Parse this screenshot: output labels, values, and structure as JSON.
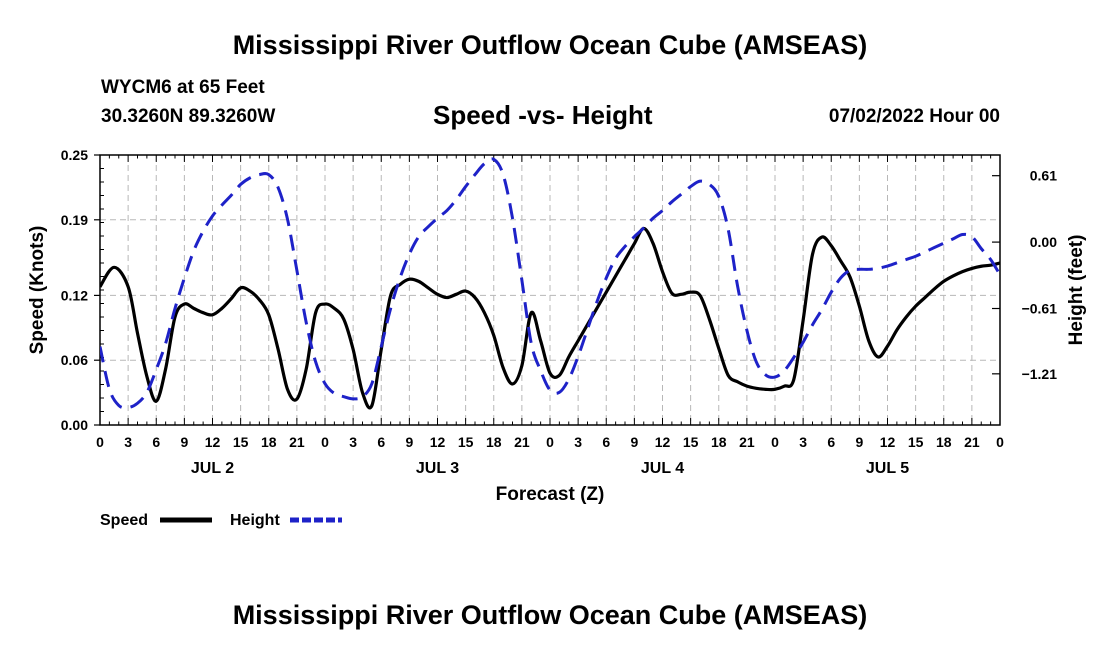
{
  "header": {
    "title": "Mississippi River Outflow Ocean Cube (AMSEAS)",
    "station": "WYCM6 at 65 Feet",
    "coords": "30.3260N  89.3260W",
    "subtitle": "Speed -vs- Height",
    "datetime": "07/02/2022 Hour 00"
  },
  "footer": {
    "title": "Mississippi River Outflow Ocean Cube (AMSEAS)"
  },
  "chart_data": {
    "type": "line",
    "title": "Speed -vs- Height",
    "xlabel": "Forecast (Z)",
    "ylabel": "Speed (Knots)",
    "y2label": "Height (feet)",
    "xlim": [
      0,
      96
    ],
    "ylim": [
      0,
      0.25
    ],
    "y2lim": [
      -1.68,
      0.8
    ],
    "grid": true,
    "x_tick_labels": [
      "0",
      "3",
      "6",
      "9",
      "12",
      "15",
      "18",
      "21",
      "0",
      "3",
      "6",
      "9",
      "12",
      "15",
      "18",
      "21",
      "0",
      "3",
      "6",
      "9",
      "12",
      "15",
      "18",
      "21",
      "0",
      "3",
      "6",
      "9",
      "12",
      "15",
      "18",
      "21",
      "0"
    ],
    "y_ticks": [
      0.0,
      0.06,
      0.12,
      0.19,
      0.25
    ],
    "y_tick_labels": [
      "0.00",
      "0.06",
      "0.12",
      "0.19",
      "0.25"
    ],
    "y2_ticks": [
      0.61,
      0.0,
      -0.61,
      -1.21
    ],
    "y2_tick_labels": [
      "0.61",
      "0.00",
      "−0.61",
      "−1.21"
    ],
    "day_labels": [
      {
        "label": "JUL 2",
        "hour": 12
      },
      {
        "label": "JUL 3",
        "hour": 36
      },
      {
        "label": "JUL 4",
        "hour": 60
      },
      {
        "label": "JUL 5",
        "hour": 84
      }
    ],
    "legend": [
      {
        "name": "Speed",
        "color": "#000000",
        "style": "solid"
      },
      {
        "name": "Height",
        "color": "#1e22c8",
        "style": "dashed"
      }
    ],
    "series": [
      {
        "name": "Speed",
        "axis": "left",
        "units": "knots",
        "color": "#000000",
        "x": [
          0,
          1.5,
          3,
          4,
          5,
          6,
          7,
          8,
          9,
          10,
          11,
          12,
          13,
          14,
          15,
          16,
          17,
          18,
          19,
          20,
          21,
          22,
          23,
          24,
          25,
          26,
          27,
          28,
          29,
          30,
          31,
          32,
          33,
          34,
          35,
          36,
          37,
          38,
          39,
          40,
          41,
          42,
          43,
          44,
          45,
          46,
          47,
          48,
          49,
          50,
          51,
          52,
          53,
          54,
          55,
          56,
          57,
          58,
          59,
          60,
          61,
          62,
          63,
          64,
          65,
          66,
          67,
          68,
          69,
          70,
          71,
          72,
          73,
          74,
          75,
          76,
          77,
          78,
          79,
          80,
          81,
          82,
          83,
          84,
          85,
          86,
          87,
          88,
          89,
          90,
          91,
          92,
          93,
          94,
          95,
          96
        ],
        "values": [
          0.128,
          0.146,
          0.128,
          0.085,
          0.045,
          0.022,
          0.052,
          0.1,
          0.112,
          0.108,
          0.104,
          0.102,
          0.108,
          0.117,
          0.127,
          0.124,
          0.116,
          0.102,
          0.07,
          0.033,
          0.024,
          0.052,
          0.104,
          0.112,
          0.108,
          0.098,
          0.07,
          0.03,
          0.018,
          0.07,
          0.12,
          0.13,
          0.135,
          0.133,
          0.127,
          0.121,
          0.118,
          0.121,
          0.124,
          0.118,
          0.104,
          0.083,
          0.053,
          0.038,
          0.055,
          0.104,
          0.078,
          0.048,
          0.046,
          0.063,
          0.078,
          0.093,
          0.108,
          0.123,
          0.138,
          0.153,
          0.168,
          0.182,
          0.168,
          0.142,
          0.122,
          0.121,
          0.123,
          0.12,
          0.098,
          0.071,
          0.046,
          0.04,
          0.036,
          0.034,
          0.033,
          0.033,
          0.036,
          0.042,
          0.097,
          0.158,
          0.174,
          0.166,
          0.152,
          0.137,
          0.11,
          0.078,
          0.063,
          0.073,
          0.088,
          0.1,
          0.11,
          0.118,
          0.126,
          0.133,
          0.138,
          0.142,
          0.145,
          0.147,
          0.148,
          0.15
        ]
      },
      {
        "name": "Height",
        "axis": "right",
        "units": "feet",
        "color": "#1e22c8",
        "x": [
          0,
          1,
          2,
          3,
          4,
          5,
          6,
          7,
          8,
          9,
          10,
          11,
          12,
          13,
          14,
          15,
          16,
          17,
          18,
          19,
          20,
          21,
          22,
          23,
          24,
          25,
          26,
          27,
          28,
          29,
          30,
          31,
          32,
          33,
          34,
          35,
          36,
          37,
          38,
          39,
          40,
          41,
          42,
          43,
          44,
          45,
          46,
          47,
          48,
          49,
          50,
          51,
          52,
          53,
          54,
          55,
          56,
          57,
          58,
          59,
          60,
          61,
          62,
          63,
          64,
          65,
          66,
          67,
          68,
          69,
          70,
          71,
          72,
          73,
          74,
          75,
          76,
          77,
          78,
          79,
          80,
          81,
          82,
          83,
          84,
          85,
          86,
          87,
          88,
          89,
          90,
          91,
          92,
          93,
          94,
          95,
          96
        ],
        "values": [
          -0.96,
          -1.35,
          -1.5,
          -1.52,
          -1.48,
          -1.38,
          -1.17,
          -0.93,
          -0.61,
          -0.33,
          -0.08,
          0.1,
          0.24,
          0.34,
          0.43,
          0.53,
          0.59,
          0.62,
          0.62,
          0.5,
          0.21,
          -0.26,
          -0.74,
          -1.1,
          -1.3,
          -1.39,
          -1.42,
          -1.44,
          -1.42,
          -1.3,
          -0.96,
          -0.61,
          -0.33,
          -0.11,
          0.05,
          0.14,
          0.22,
          0.29,
          0.39,
          0.51,
          0.62,
          0.72,
          0.76,
          0.62,
          0.22,
          -0.35,
          -0.93,
          -1.18,
          -1.36,
          -1.38,
          -1.26,
          -1.05,
          -0.8,
          -0.55,
          -0.33,
          -0.15,
          -0.04,
          0.05,
          0.13,
          0.22,
          0.29,
          0.37,
          0.44,
          0.51,
          0.56,
          0.53,
          0.42,
          0.12,
          -0.4,
          -0.81,
          -1.1,
          -1.22,
          -1.24,
          -1.18,
          -1.06,
          -0.92,
          -0.76,
          -0.62,
          -0.46,
          -0.33,
          -0.26,
          -0.25,
          -0.25,
          -0.24,
          -0.22,
          -0.19,
          -0.16,
          -0.13,
          -0.09,
          -0.05,
          -0.01,
          0.03,
          0.07,
          0.05,
          -0.06,
          -0.16,
          -0.3
        ]
      }
    ]
  }
}
